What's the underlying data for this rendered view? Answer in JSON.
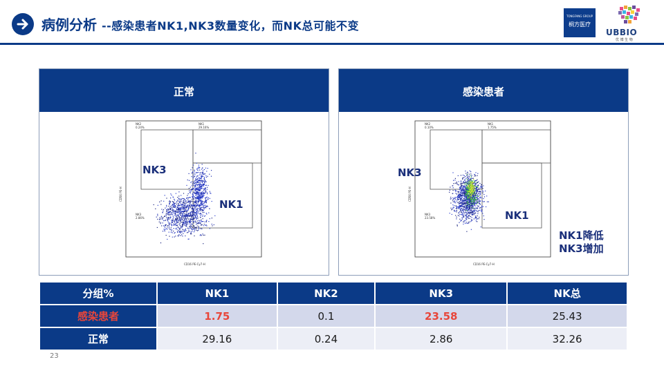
{
  "header": {
    "title": "病例分析",
    "subtitle": "--感染患者NK1,NK3数量变化，而NK总可能不变",
    "logo_tongfang_small": "TONGFANG GROUP",
    "logo_tongfang_name": "桐方医疗",
    "logo_ubbio_text": "UBBIO",
    "logo_ubbio_cn": "优 博 生 物"
  },
  "panels": {
    "normal": {
      "title": "正常",
      "gate_nk3": "NK3",
      "gate_nk1": "NK1",
      "q_nk2": "NK2",
      "q_nk2_val": "0.24%",
      "q_nk1": "NK1",
      "q_nk1_val": "29.16%",
      "q_nk3": "NK3",
      "q_nk3_val": "2.86%",
      "xaxis": "CD16 PE-Cy7-H",
      "yaxis": "CD56 PE-H"
    },
    "patient": {
      "title": "感染患者",
      "gate_nk3": "NK3",
      "gate_nk1": "NK1",
      "q_nk2": "NK2",
      "q_nk2_val": "0.10%",
      "q_nk1": "NK1",
      "q_nk1_val": "1.75%",
      "q_nk3": "NK3",
      "q_nk3_val": "23.58%",
      "xaxis": "CD16 PE-Cy7-H",
      "yaxis": "CD56 PE-H",
      "summary_line1": "NK1降低",
      "summary_line2": "NK3增加"
    }
  },
  "table": {
    "headers": [
      "分组%",
      "NK1",
      "NK2",
      "NK3",
      "NK总"
    ],
    "rows": [
      {
        "label": "感染患者",
        "values": [
          "1.75",
          "0.1",
          "23.58",
          "25.43"
        ]
      },
      {
        "label": "正常",
        "values": [
          "29.16",
          "0.24",
          "2.86",
          "32.26"
        ]
      }
    ]
  },
  "colors": {
    "brand_blue": "#0b3a87",
    "highlight_red": "#e8463a",
    "row_tint_1": "#d3d8eb",
    "row_tint_2": "#eceef6"
  },
  "page_number": "23"
}
